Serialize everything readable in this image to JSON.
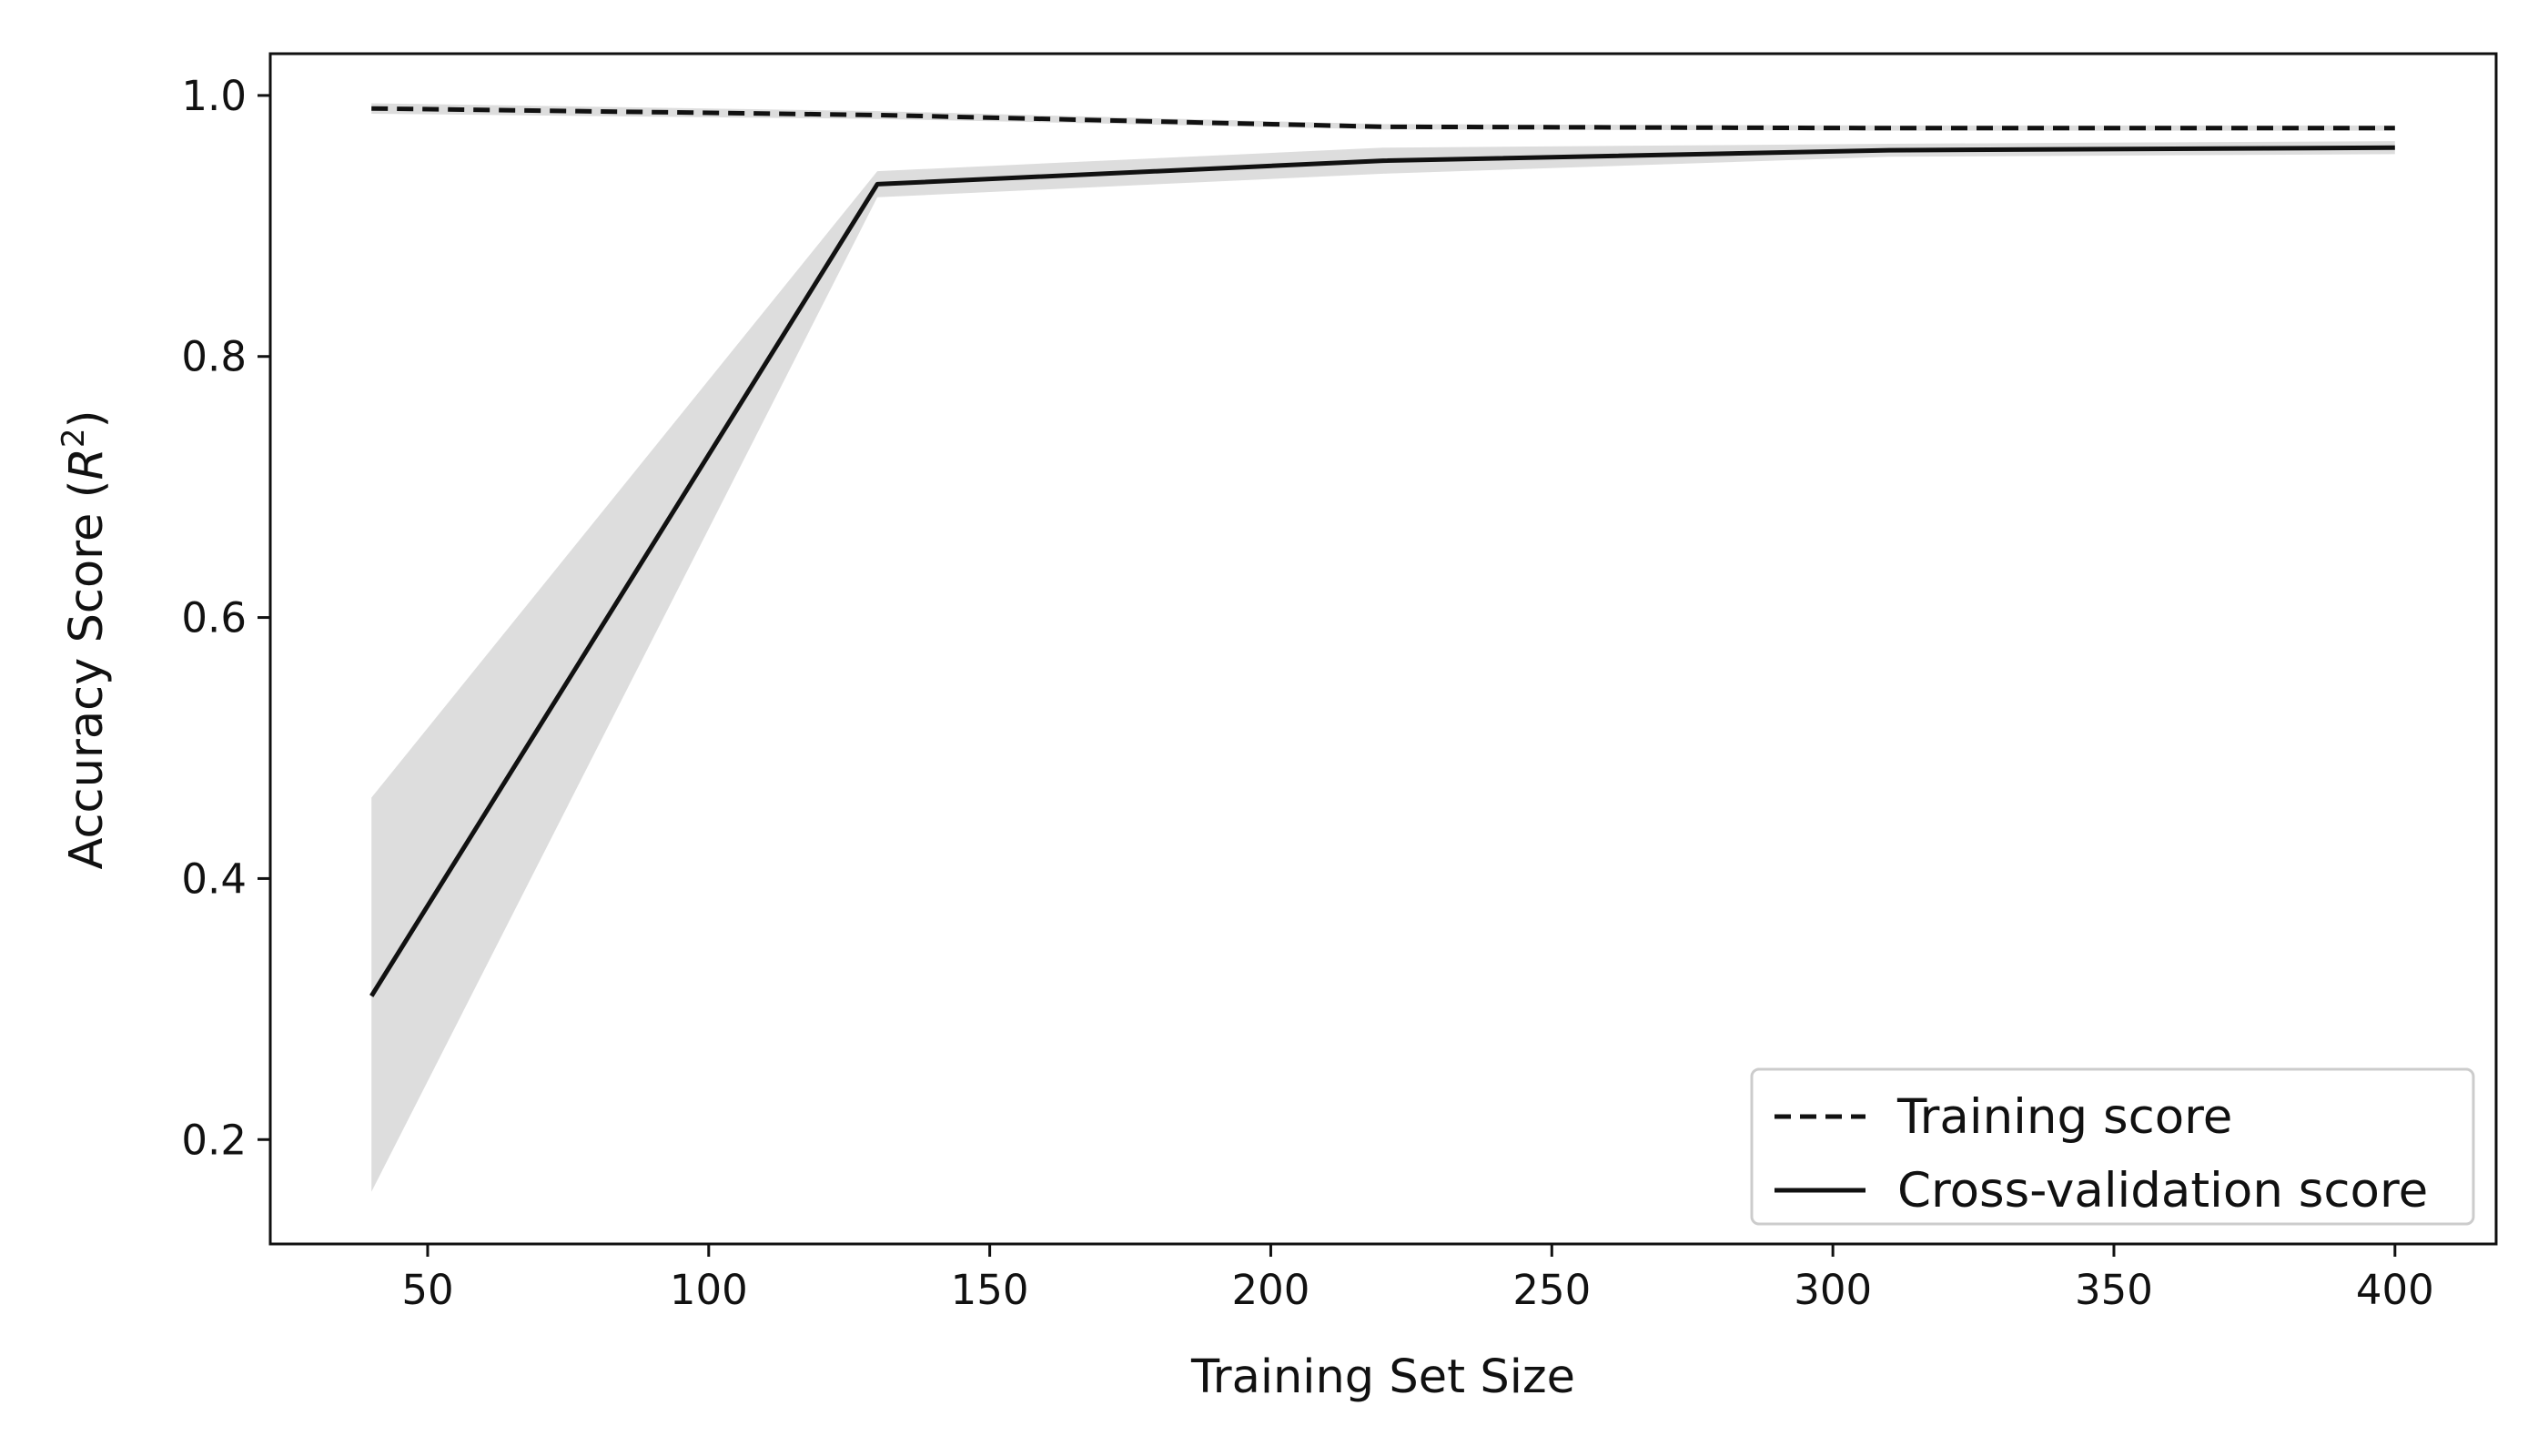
{
  "chart_data": {
    "type": "line",
    "title": "",
    "xlabel": "Training Set Size",
    "ylabel_main": "Accuracy Score (",
    "ylabel_var": "R",
    "ylabel_sup": "2",
    "ylabel_close": ")",
    "xlim": [
      22,
      418
    ],
    "ylim": [
      0.12,
      1.032
    ],
    "x_ticks": [
      50,
      100,
      150,
      200,
      250,
      300,
      350,
      400
    ],
    "x_tick_labels": [
      "50",
      "100",
      "150",
      "200",
      "250",
      "300",
      "350",
      "400"
    ],
    "y_ticks": [
      0.2,
      0.4,
      0.6,
      0.8,
      1.0
    ],
    "y_tick_labels": [
      "0.2",
      "0.4",
      "0.6",
      "0.8",
      "1.0"
    ],
    "grid": false,
    "legend_position": "lower-right",
    "series": [
      {
        "name": "Training score",
        "line_style": "dashed",
        "color": "#111111",
        "x": [
          40,
          130,
          220,
          310,
          400
        ],
        "values": [
          0.99,
          0.985,
          0.976,
          0.975,
          0.975
        ],
        "band_lower": [
          0.986,
          0.982,
          0.974,
          0.973,
          0.973
        ],
        "band_upper": [
          0.994,
          0.988,
          0.978,
          0.977,
          0.977
        ]
      },
      {
        "name": "Cross-validation score",
        "line_style": "solid",
        "color": "#111111",
        "x": [
          40,
          130,
          220,
          310,
          400
        ],
        "values": [
          0.31,
          0.932,
          0.95,
          0.958,
          0.96
        ],
        "band_lower": [
          0.16,
          0.922,
          0.94,
          0.953,
          0.955
        ],
        "band_upper": [
          0.462,
          0.942,
          0.96,
          0.963,
          0.965
        ]
      }
    ],
    "band_color": "#dddddd"
  }
}
